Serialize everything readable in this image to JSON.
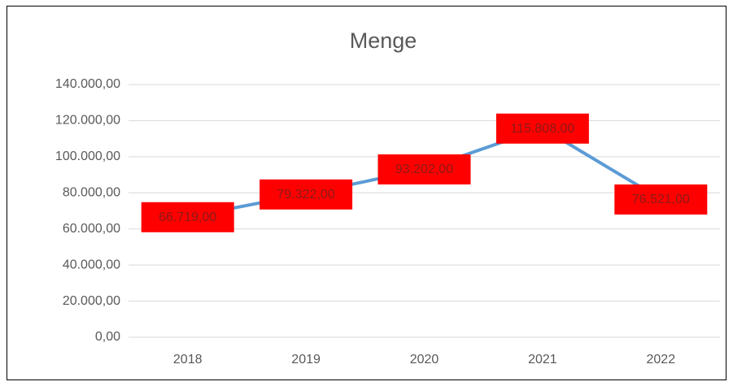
{
  "chart_data": {
    "type": "line",
    "title": "Menge",
    "categories": [
      "2018",
      "2019",
      "2020",
      "2021",
      "2022"
    ],
    "values": [
      66719,
      79322,
      93202,
      115808,
      76521
    ],
    "value_labels": [
      "66.719,00",
      "79.322,00",
      "93.202,00",
      "115.808,00",
      "76.521,00"
    ],
    "color": "#5b9bd5",
    "label_background": "#ff0000",
    "ylim": [
      0,
      140000
    ],
    "yticks": [
      {
        "value": 0,
        "label": "0,00"
      },
      {
        "value": 20000,
        "label": "20.000,00"
      },
      {
        "value": 40000,
        "label": "40.000,00"
      },
      {
        "value": 60000,
        "label": "60.000,00"
      },
      {
        "value": 80000,
        "label": "80.000,00"
      },
      {
        "value": 100000,
        "label": "100.000,00"
      },
      {
        "value": 120000,
        "label": "120.000,00"
      },
      {
        "value": 140000,
        "label": "140.000,00"
      }
    ],
    "grid": true
  }
}
